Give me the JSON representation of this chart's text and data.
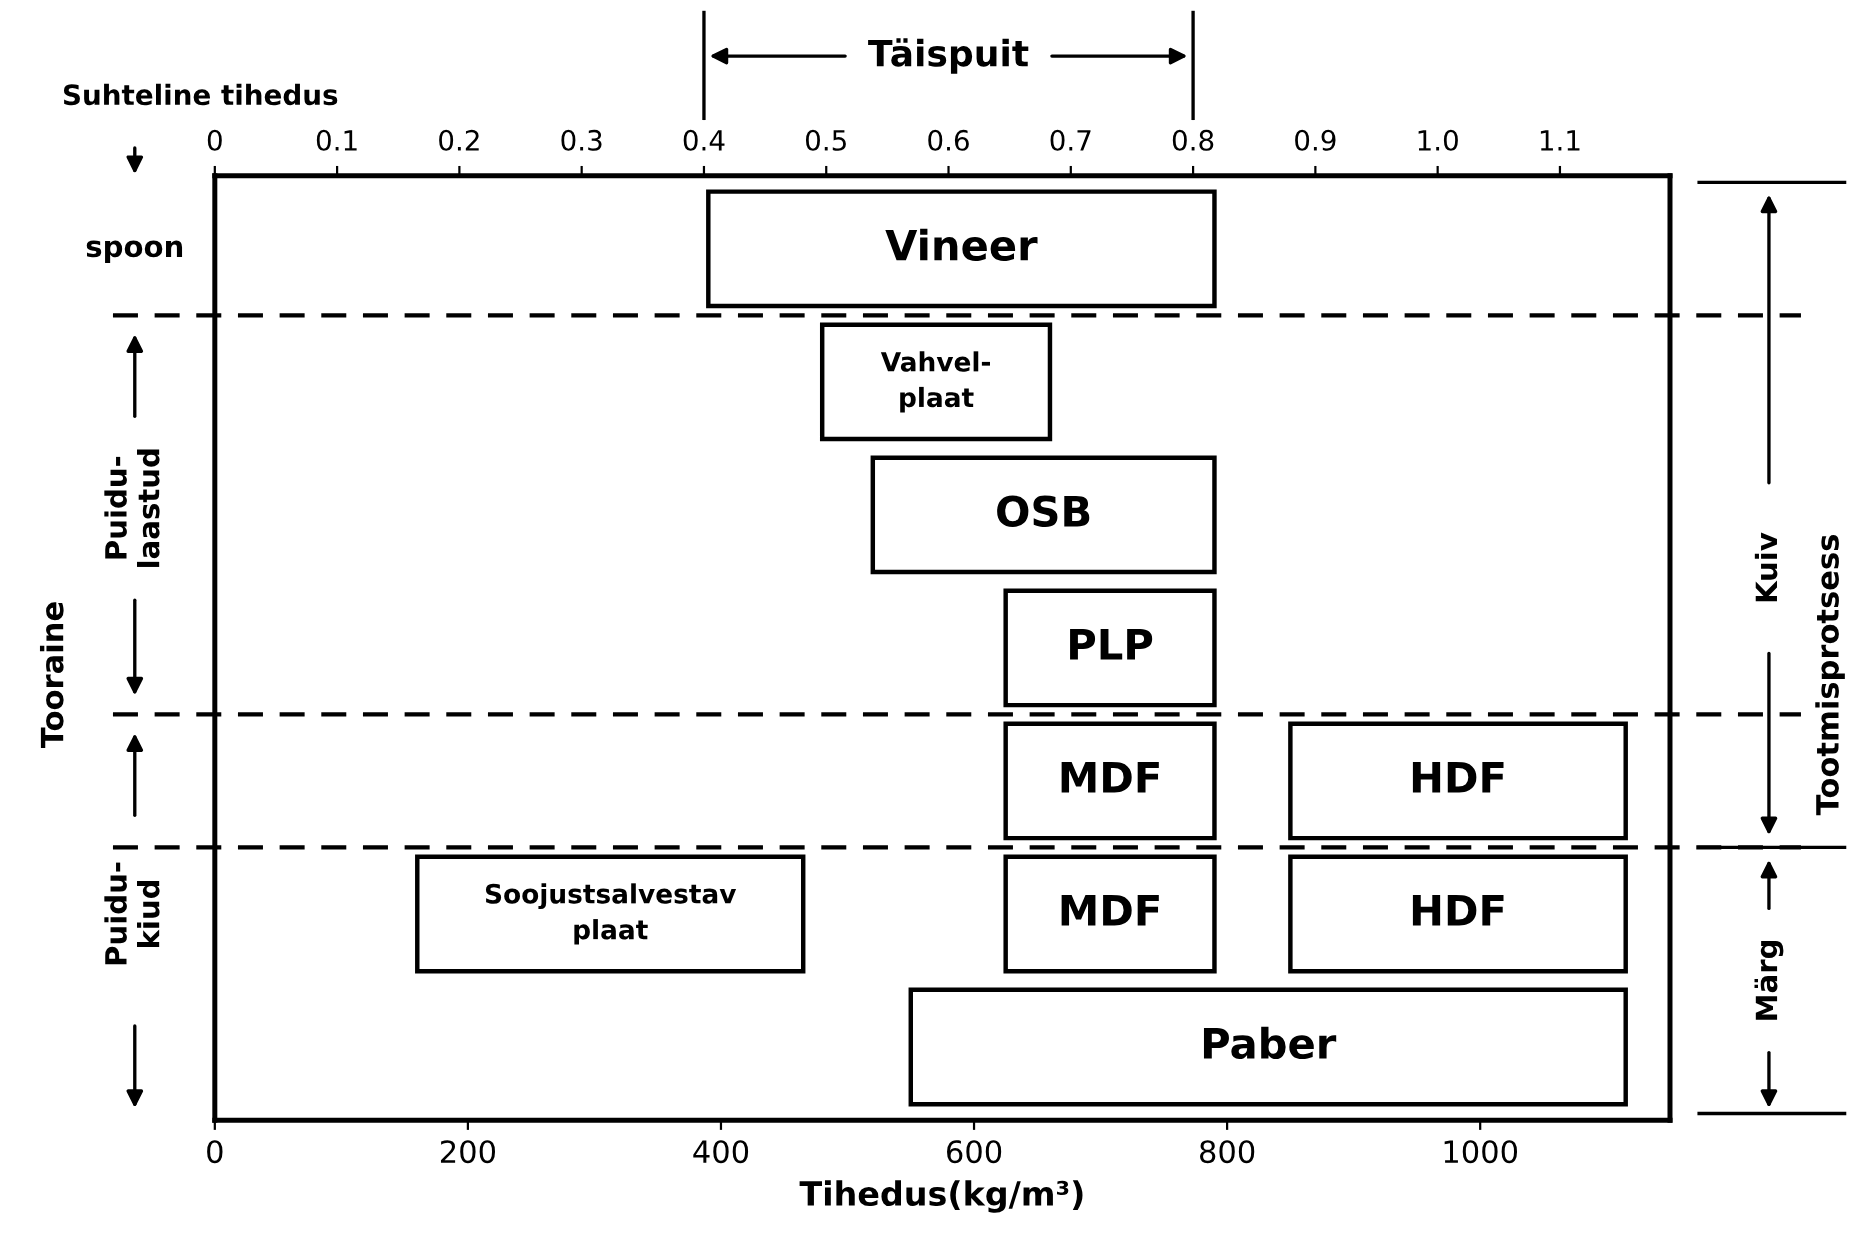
{
  "chart_data": {
    "type": "bar",
    "orientation": "horizontal",
    "categories": [
      null,
      null,
      null,
      null,
      null,
      null,
      null
    ],
    "series": [
      {
        "color": "#ffffff",
        "base": [
          390,
          480,
          520,
          625,
          625,
          160,
          550
        ],
        "values": [
          400,
          180,
          270,
          165,
          165,
          305,
          565
        ],
        "value_labels": [
          "Vineer",
          "Vahvel-\nplaat",
          "OSB",
          "PLP",
          "MDF",
          "Soojustsalvestav\nplaat",
          "Paber"
        ]
      },
      {
        "color": "#ffffff",
        "base": [
          null,
          null,
          null,
          null,
          850,
          625,
          null
        ],
        "values": [
          null,
          null,
          null,
          null,
          265,
          165,
          null
        ],
        "value_labels": [
          null,
          null,
          null,
          null,
          "HDF",
          "MDF",
          null
        ]
      },
      {
        "color": "#ffffff",
        "base": [
          null,
          null,
          null,
          null,
          null,
          850,
          null
        ],
        "values": [
          null,
          null,
          null,
          null,
          null,
          265,
          null
        ],
        "value_labels": [
          null,
          null,
          null,
          null,
          null,
          "HDF",
          null
        ]
      }
    ],
    "xlabel": "Tihedus(kg/m³)",
    "x2label": "Suhteline tihedus",
    "xlim": [
      0,
      1150
    ],
    "xticks": [
      0,
      200,
      400,
      600,
      800,
      1000
    ],
    "x2lim": [
      0,
      1.19
    ],
    "x2ticks": [
      0,
      0.1,
      0.2,
      0.3,
      0.4,
      0.5,
      0.6,
      0.7,
      0.8,
      0.9,
      {
        "value": 1,
        "label": "1.0"
      },
      1.1
    ],
    "annotations": [
      "Täispuit",
      "spoon",
      "Puidu-\nlaastud",
      "Puidu-\nkiud",
      "Tooraine",
      "Kuiv",
      "Märg",
      "Tootmisprotsess"
    ],
    "grid": false,
    "legend": false
  }
}
